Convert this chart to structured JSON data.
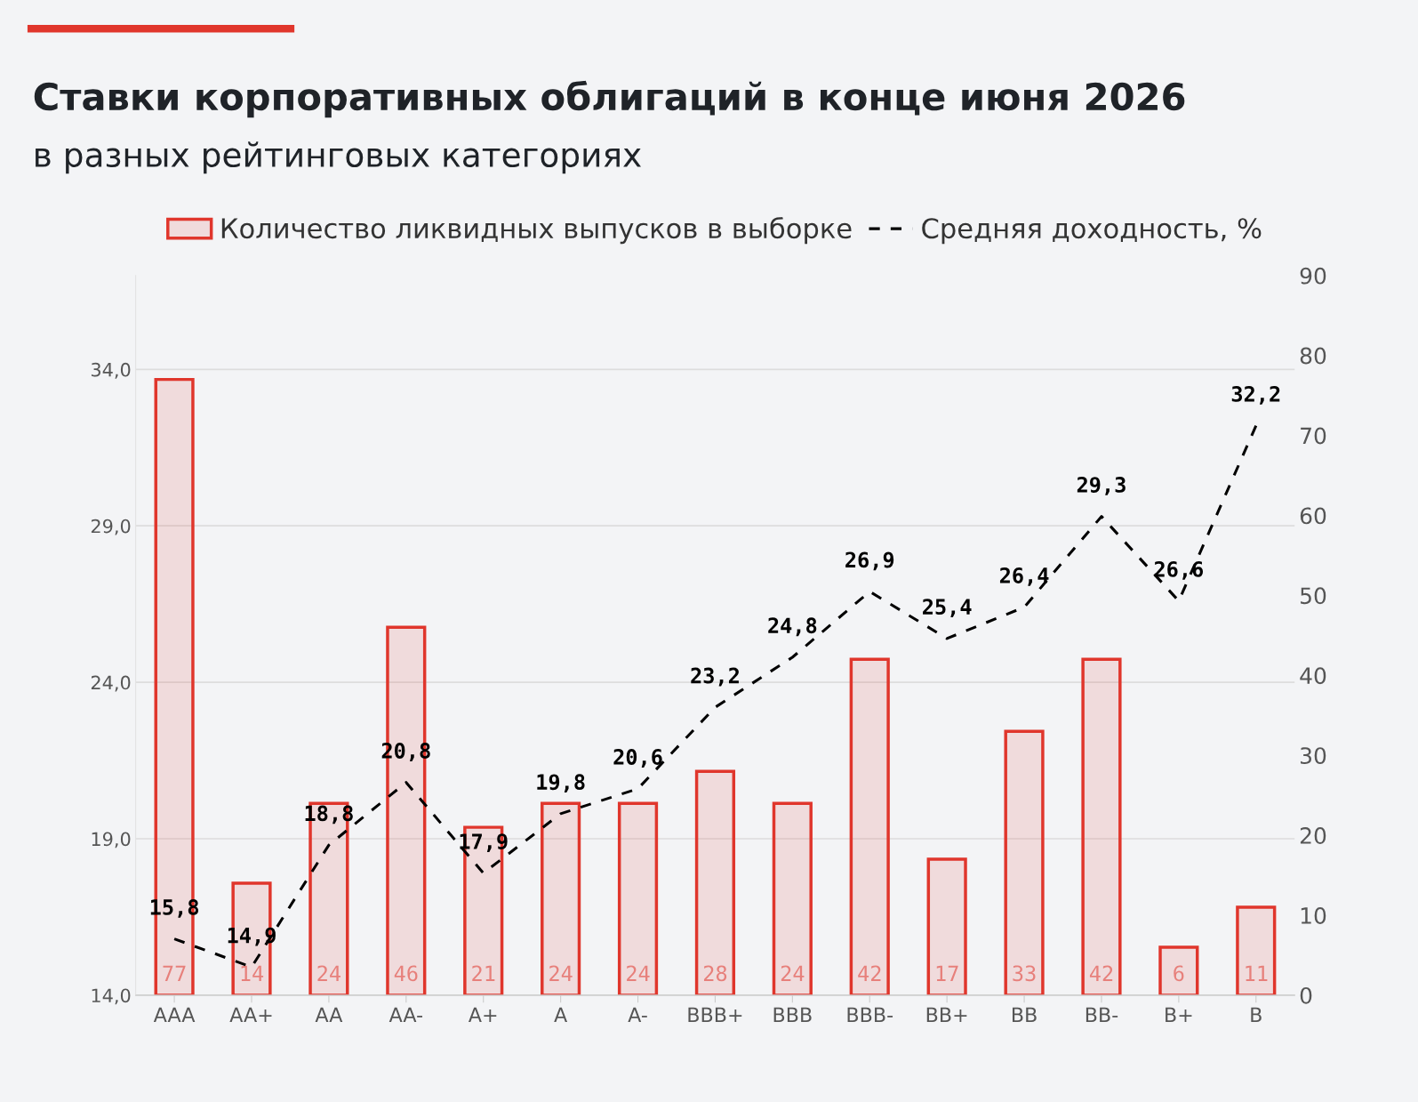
{
  "chart_data": {
    "type": "bar",
    "title": "Ставки корпоративных облигаций в конце июня 2026",
    "subtitle": "в разных рейтинговых категориях",
    "categories": [
      "AAA",
      "AA+",
      "AA",
      "AA-",
      "A+",
      "A",
      "A-",
      "BBB+",
      "BBB",
      "BBB-",
      "BB+",
      "BB",
      "BB-",
      "B+",
      "B"
    ],
    "series": [
      {
        "name": "Количество ликвидных выпусков в выборке",
        "axis": "y2",
        "color": "#e0362c",
        "values": [
          77,
          14,
          24,
          46,
          21,
          24,
          24,
          28,
          24,
          42,
          17,
          33,
          42,
          6,
          11
        ],
        "value_labels": [
          "77",
          "14",
          "24",
          "46",
          "21",
          "24",
          "24",
          "28",
          "24",
          "42",
          "17",
          "33",
          "42",
          "6",
          "11"
        ]
      },
      {
        "name": "Средняя доходность, %",
        "type": "line",
        "axis": "y",
        "color": "#000000",
        "line_style": "dashed",
        "values": [
          15.8,
          14.9,
          18.8,
          20.8,
          17.9,
          19.8,
          20.6,
          23.2,
          24.8,
          26.9,
          25.4,
          26.4,
          29.3,
          26.6,
          32.2
        ],
        "value_labels": [
          "15,8",
          "14,9",
          "18,8",
          "20,8",
          "17,9",
          "19,8",
          "20,6",
          "23,2",
          "24,8",
          "26,9",
          "25,4",
          "26,4",
          "29,3",
          "26,6",
          "32,2"
        ]
      }
    ],
    "ylim": [
      14,
      37
    ],
    "yticks": [
      {
        "value": 14,
        "label": "14,0"
      },
      {
        "value": 19,
        "label": "19,0"
      },
      {
        "value": 24,
        "label": "24,0"
      },
      {
        "value": 29,
        "label": "29,0"
      },
      {
        "value": 34,
        "label": "34,0"
      }
    ],
    "y2lim": [
      0,
      90
    ],
    "y2ticks": [
      0,
      10,
      20,
      30,
      40,
      50,
      60,
      70,
      80,
      90
    ],
    "grid": "y",
    "legend": "top"
  }
}
